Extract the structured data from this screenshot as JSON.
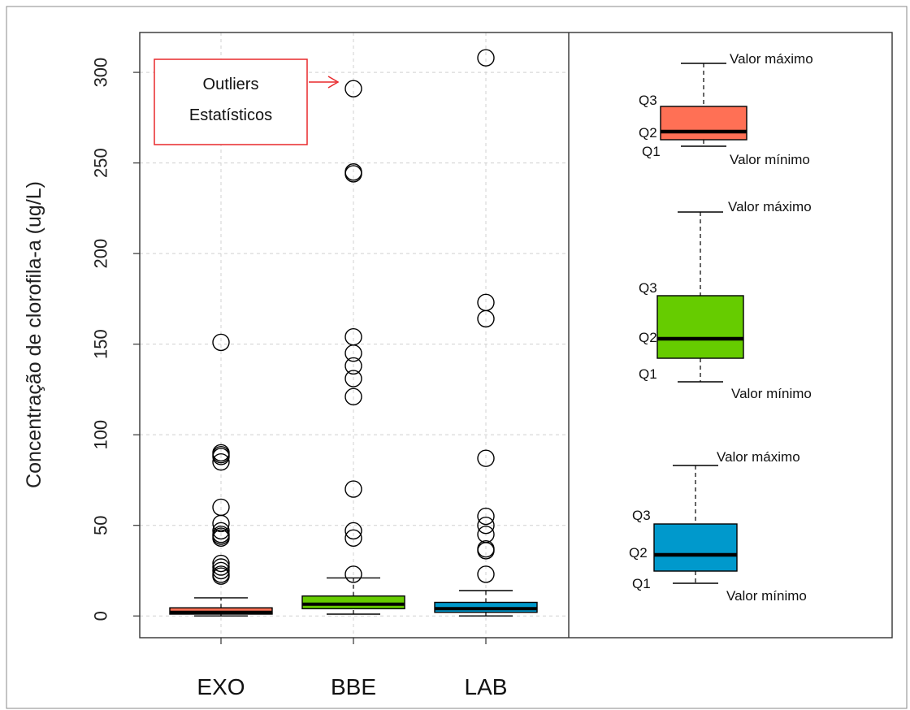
{
  "chart_data": {
    "type": "box",
    "ylabel": "Concentração de clorofila-a (ug/L)",
    "ylim": [
      -12,
      322
    ],
    "yticks": [
      0,
      50,
      100,
      150,
      200,
      250,
      300
    ],
    "grid": true,
    "categories": [
      "EXO",
      "BBE",
      "LAB"
    ],
    "boxes": [
      {
        "name": "EXO",
        "color": "#ff7055",
        "min": 0,
        "q1": 1,
        "median": 2,
        "q3": 4.5,
        "whisker_high": 10,
        "outliers": [
          151,
          90,
          89,
          88,
          85,
          60,
          51,
          47,
          45,
          44,
          43,
          29,
          27,
          25,
          23,
          22
        ]
      },
      {
        "name": "BBE",
        "color": "#66cc00",
        "min": 1,
        "q1": 4,
        "median": 6.5,
        "q3": 11,
        "whisker_high": 21,
        "outliers": [
          291,
          245,
          244,
          154,
          145,
          138,
          131,
          121,
          70,
          47,
          43,
          23
        ]
      },
      {
        "name": "LAB",
        "color": "#0099cc",
        "min": 0,
        "q1": 2,
        "median": 4,
        "q3": 7.5,
        "whisker_high": 14,
        "outliers": [
          308,
          173,
          164,
          87,
          55,
          50,
          45,
          37,
          36,
          23
        ]
      }
    ],
    "annotation": {
      "line1": "Outliers",
      "line2": "Estatísticos"
    },
    "legend": {
      "max_label": "Valor máximo",
      "min_label": "Valor mínimo",
      "q1": "Q1",
      "q2": "Q2",
      "q3": "Q3"
    }
  },
  "colors": {
    "grid": "#d0d0d0",
    "axis": "#333333",
    "annotation_red": "#e8282b"
  }
}
